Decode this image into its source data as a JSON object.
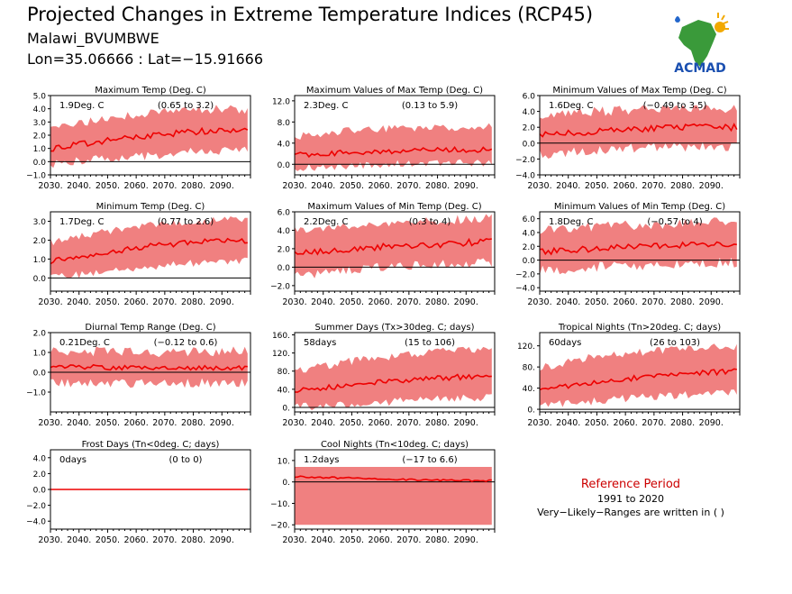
{
  "header": {
    "title": "Projected Changes in Extreme Temperature Indices (RCP45)",
    "location": "Malawi_BVUMBWE",
    "coords": "Lon=35.06666 : Lat=−15.91666"
  },
  "logo": {
    "text": "ACMAD",
    "icon": "africa-map-logo-icon"
  },
  "colors": {
    "band": "#f08080",
    "median": "#ee0000",
    "zero": "#000000"
  },
  "reference": {
    "title": "Reference Period",
    "years": "1991 to 2020",
    "note": "Very−Likely−Ranges are written in ( )"
  },
  "chart_data": [
    {
      "type": "area",
      "title": "Maximum Temp (Deg. C)",
      "value_text": "1.9Deg. C",
      "range_text": "(0.65 to 3.2)",
      "x_range": [
        2030,
        2100
      ],
      "ylim": [
        -1.0,
        5.0
      ],
      "yticks": [
        -1.0,
        0.0,
        1.0,
        2.0,
        3.0,
        4.0,
        5.0
      ],
      "ytick_labels": [
        "−1.0",
        "0.0",
        "1.0",
        "2.0",
        "3.0",
        "4.0",
        "5.0"
      ],
      "xticks": [
        2030,
        2040,
        2050,
        2060,
        2070,
        2080,
        2090
      ],
      "xtick_labels": [
        "2030.",
        "2040.",
        "2050.",
        "2060.",
        "2070.",
        "2080.",
        "2090."
      ],
      "median": [
        1.0,
        1.5,
        2.0,
        2.3,
        2.3
      ],
      "low": [
        0.2,
        0.5,
        0.8,
        1.1,
        1.3
      ],
      "high": [
        2.0,
        2.8,
        3.3,
        3.6,
        3.6
      ],
      "noise": [
        0.25,
        0.7
      ]
    },
    {
      "type": "area",
      "title": "Maximum Values of Max Temp (Deg. C)",
      "value_text": "2.3Deg. C",
      "range_text": "(0.13 to 5.9)",
      "x_range": [
        2030,
        2100
      ],
      "ylim": [
        -2.0,
        13.0
      ],
      "yticks": [
        0.0,
        4.0,
        8.0,
        12.0
      ],
      "ytick_labels": [
        "0.0",
        "4.0",
        "8.0",
        "12.0"
      ],
      "xticks": [
        2030,
        2040,
        2050,
        2060,
        2070,
        2080,
        2090
      ],
      "xtick_labels": [
        "2030.",
        "2040.",
        "2050.",
        "2060.",
        "2070.",
        "2080.",
        "2090."
      ],
      "median": [
        1.8,
        2.2,
        2.5,
        2.7,
        2.8
      ],
      "low": [
        0.0,
        0.3,
        0.8,
        1.0,
        1.0
      ],
      "high": [
        4.5,
        5.5,
        6.0,
        6.2,
        6.3
      ],
      "noise": [
        0.5,
        1.5
      ]
    },
    {
      "type": "area",
      "title": "Minimum Values of Max Temp (Deg. C)",
      "value_text": "1.6Deg. C",
      "range_text": "(−0.49 to 3.5)",
      "x_range": [
        2030,
        2100
      ],
      "ylim": [
        -4.0,
        6.0
      ],
      "yticks": [
        -4.0,
        -2.0,
        0.0,
        2.0,
        4.0,
        6.0
      ],
      "ytick_labels": [
        "−4.0",
        "−2.0",
        "0.0",
        "2.0",
        "4.0",
        "6.0"
      ],
      "xticks": [
        2030,
        2040,
        2050,
        2060,
        2070,
        2080,
        2090
      ],
      "xtick_labels": [
        "2030.",
        "2040.",
        "2050.",
        "2060.",
        "2070.",
        "2080.",
        "2090."
      ],
      "median": [
        1.0,
        1.4,
        1.8,
        2.0,
        2.0
      ],
      "low": [
        -0.8,
        -0.3,
        0.0,
        0.2,
        0.2
      ],
      "high": [
        2.8,
        3.3,
        3.6,
        3.7,
        3.7
      ],
      "noise": [
        0.4,
        1.3
      ]
    },
    {
      "type": "area",
      "title": "Minimum Temp (Deg. C)",
      "value_text": "1.7Deg. C",
      "range_text": "(0.77 to 2.6)",
      "x_range": [
        2030,
        2100
      ],
      "ylim": [
        -0.7,
        3.5
      ],
      "yticks": [
        0.0,
        1.0,
        2.0,
        3.0
      ],
      "ytick_labels": [
        "0.0",
        "1.0",
        "2.0",
        "3.0"
      ],
      "xticks": [
        2030,
        2040,
        2050,
        2060,
        2070,
        2080,
        2090
      ],
      "xtick_labels": [
        "2030.",
        "2040.",
        "2050.",
        "2060.",
        "2070.",
        "2080.",
        "2090."
      ],
      "median": [
        0.9,
        1.3,
        1.7,
        1.9,
        2.0
      ],
      "low": [
        0.2,
        0.5,
        0.8,
        1.0,
        1.1
      ],
      "high": [
        1.7,
        2.2,
        2.6,
        2.8,
        2.9
      ],
      "noise": [
        0.15,
        0.4
      ]
    },
    {
      "type": "area",
      "title": "Maximum Values of Min Temp (Deg. C)",
      "value_text": "2.2Deg. C",
      "range_text": "(0.3 to 4)",
      "x_range": [
        2030,
        2100
      ],
      "ylim": [
        -2.6,
        6.0
      ],
      "yticks": [
        -2.0,
        0.0,
        2.0,
        4.0,
        6.0
      ],
      "ytick_labels": [
        "−2.0",
        "0.0",
        "2.0",
        "4.0",
        "6.0"
      ],
      "xticks": [
        2030,
        2040,
        2050,
        2060,
        2070,
        2080,
        2090
      ],
      "xtick_labels": [
        "2030.",
        "2040.",
        "2050.",
        "2060.",
        "2070.",
        "2080.",
        "2090."
      ],
      "median": [
        1.4,
        1.9,
        2.3,
        2.5,
        2.8
      ],
      "low": [
        -0.5,
        0.2,
        0.6,
        0.8,
        1.0
      ],
      "high": [
        3.5,
        4.0,
        4.4,
        4.6,
        4.8
      ],
      "noise": [
        0.35,
        1.0
      ]
    },
    {
      "type": "area",
      "title": "Minimum Values of Min Temp (Deg. C)",
      "value_text": "1.8Deg. C",
      "range_text": "(−0.57 to 4)",
      "x_range": [
        2030,
        2100
      ],
      "ylim": [
        -4.5,
        7.0
      ],
      "yticks": [
        -4.0,
        -2.0,
        0.0,
        2.0,
        4.0,
        6.0
      ],
      "ytick_labels": [
        "−4.0",
        "−2.0",
        "0.0",
        "2.0",
        "4.0",
        "6.0"
      ],
      "xticks": [
        2030,
        2040,
        2050,
        2060,
        2070,
        2080,
        2090
      ],
      "xtick_labels": [
        "2030.",
        "2040.",
        "2050.",
        "2060.",
        "2070.",
        "2080.",
        "2090."
      ],
      "median": [
        1.2,
        1.6,
        2.0,
        2.2,
        2.4
      ],
      "low": [
        -0.8,
        -0.3,
        0.0,
        0.3,
        0.4
      ],
      "high": [
        3.5,
        4.0,
        4.4,
        4.6,
        4.8
      ],
      "noise": [
        0.45,
        1.5
      ]
    },
    {
      "type": "area",
      "title": "Diurnal Temp Range (Deg. C)",
      "value_text": "0.21Deg. C",
      "range_text": "(−0.12 to 0.6)",
      "x_range": [
        2030,
        2100
      ],
      "ylim": [
        -2.0,
        2.0
      ],
      "yticks": [
        -1.0,
        0.0,
        1.0,
        2.0
      ],
      "ytick_labels": [
        "−1.0",
        "0.0",
        "1.0",
        "2.0"
      ],
      "xticks": [
        2030,
        2040,
        2050,
        2060,
        2070,
        2080,
        2090
      ],
      "xtick_labels": [
        "2030.",
        "2040.",
        "2050.",
        "2060.",
        "2070.",
        "2080.",
        "2090."
      ],
      "median": [
        0.3,
        0.25,
        0.2,
        0.22,
        0.25
      ],
      "low": [
        -0.3,
        -0.3,
        -0.3,
        -0.3,
        -0.3
      ],
      "high": [
        0.8,
        0.8,
        0.75,
        0.8,
        0.8
      ],
      "noise": [
        0.12,
        0.5
      ]
    },
    {
      "type": "area",
      "title": "Summer Days (Tx>30deg. C; days)",
      "value_text": "58days",
      "range_text": "(15 to 106)",
      "x_range": [
        2030,
        2100
      ],
      "ylim": [
        -10,
        165
      ],
      "yticks": [
        0,
        40,
        80,
        120,
        160
      ],
      "ytick_labels": [
        "0.",
        "40.",
        "80.",
        "120.",
        "160."
      ],
      "xticks": [
        2030,
        2040,
        2050,
        2060,
        2070,
        2080,
        2090
      ],
      "xtick_labels": [
        "2030.",
        "2040.",
        "2050.",
        "2060.",
        "2070.",
        "2080.",
        "2090."
      ],
      "median": [
        35,
        48,
        58,
        65,
        70
      ],
      "low": [
        10,
        15,
        22,
        28,
        30
      ],
      "high": [
        70,
        90,
        105,
        115,
        120
      ],
      "noise": [
        6,
        18
      ]
    },
    {
      "type": "area",
      "title": "Tropical Nights (Tn>20deg. C; days)",
      "value_text": "60days",
      "range_text": "(26 to 103)",
      "x_range": [
        2030,
        2100
      ],
      "ylim": [
        -5,
        145
      ],
      "yticks": [
        0,
        40,
        80,
        120
      ],
      "ytick_labels": [
        "0.",
        "40.",
        "80.",
        "120."
      ],
      "xticks": [
        2030,
        2040,
        2050,
        2060,
        2070,
        2080,
        2090
      ],
      "xtick_labels": [
        "2030.",
        "2040.",
        "2050.",
        "2060.",
        "2070.",
        "2080.",
        "2090."
      ],
      "median": [
        38,
        50,
        60,
        68,
        72
      ],
      "low": [
        15,
        22,
        30,
        35,
        38
      ],
      "high": [
        70,
        90,
        100,
        108,
        112
      ],
      "noise": [
        5,
        15
      ]
    },
    {
      "type": "area",
      "title": "Frost Days (Tn<0deg. C; days)",
      "value_text": "0days",
      "range_text": "(0 to 0)",
      "x_range": [
        2030,
        2100
      ],
      "ylim": [
        -5.0,
        5.0
      ],
      "yticks": [
        -4.0,
        -2.0,
        0.0,
        2.0,
        4.0
      ],
      "ytick_labels": [
        "−4.0",
        "−2.0",
        "0.0",
        "2.0",
        "4.0"
      ],
      "xticks": [
        2030,
        2040,
        2050,
        2060,
        2070,
        2080,
        2090
      ],
      "xtick_labels": [
        "2030.",
        "2040.",
        "2050.",
        "2060.",
        "2070.",
        "2080.",
        "2090."
      ],
      "median": [
        0,
        0,
        0,
        0,
        0
      ],
      "low": [
        0,
        0,
        0,
        0,
        0
      ],
      "high": [
        0,
        0,
        0,
        0,
        0
      ],
      "noise": [
        0,
        0
      ]
    },
    {
      "type": "area",
      "title": "Cool Nights (Tn<10deg. C; days)",
      "value_text": "1.2days",
      "range_text": "(−17 to 6.6)",
      "x_range": [
        2030,
        2100
      ],
      "ylim": [
        -22,
        15
      ],
      "yticks": [
        -20,
        -10,
        0,
        10
      ],
      "ytick_labels": [
        "−20.",
        "−10.",
        "0.",
        "10."
      ],
      "xticks": [
        2030,
        2040,
        2050,
        2060,
        2070,
        2080,
        2090
      ],
      "xtick_labels": [
        "2030.",
        "2040.",
        "2050.",
        "2060.",
        "2070.",
        "2080.",
        "2090."
      ],
      "median": [
        2.5,
        1.8,
        1.2,
        0.8,
        0.5
      ],
      "low": [
        -20,
        -20,
        -20,
        -20,
        -20
      ],
      "high": [
        7,
        7,
        7,
        7,
        7
      ],
      "noise": [
        0.4,
        0
      ]
    }
  ]
}
